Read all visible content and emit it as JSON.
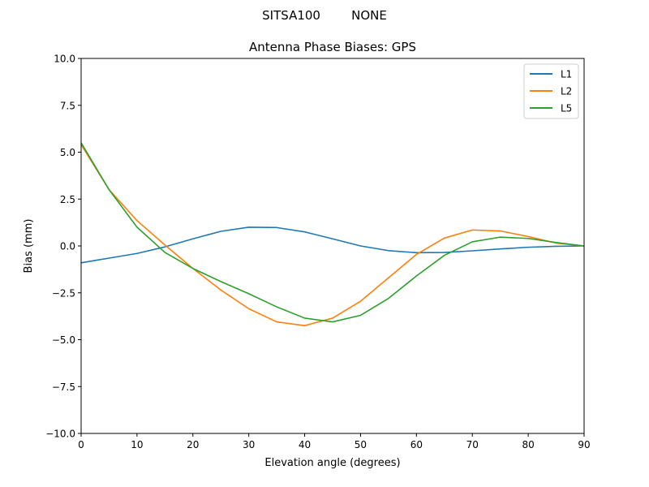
{
  "suptitle": "SITSA100        NONE",
  "chart_data": {
    "type": "line",
    "title": "Antenna Phase Biases: GPS",
    "xlabel": "Elevation angle (degrees)",
    "ylabel": "Bias (mm)",
    "xlim": [
      0,
      90
    ],
    "ylim": [
      -10,
      10
    ],
    "xticks": [
      0,
      10,
      20,
      30,
      40,
      50,
      60,
      70,
      80,
      90
    ],
    "xtick_labels": [
      "0",
      "10",
      "20",
      "30",
      "40",
      "50",
      "60",
      "70",
      "80",
      "90"
    ],
    "yticks": [
      -10,
      -7.5,
      -5,
      -2.5,
      0,
      2.5,
      5,
      7.5,
      10
    ],
    "ytick_labels": [
      "−10.0",
      "−7.5",
      "−5.0",
      "−2.5",
      "0.0",
      "2.5",
      "5.0",
      "7.5",
      "10.0"
    ],
    "grid": false,
    "legend_position": "top-right",
    "x": [
      0,
      5,
      10,
      15,
      20,
      25,
      30,
      35,
      40,
      45,
      50,
      55,
      60,
      65,
      70,
      75,
      80,
      85,
      90
    ],
    "series": [
      {
        "name": "L1",
        "color": "#1f77b4",
        "values": [
          -0.9,
          -0.65,
          -0.4,
          -0.05,
          0.38,
          0.78,
          1.0,
          0.98,
          0.75,
          0.38,
          0.0,
          -0.25,
          -0.36,
          -0.35,
          -0.26,
          -0.16,
          -0.07,
          -0.02,
          0.0
        ]
      },
      {
        "name": "L2",
        "color": "#ff7f0e",
        "values": [
          5.4,
          3.0,
          1.35,
          0.05,
          -1.2,
          -2.35,
          -3.35,
          -4.05,
          -4.25,
          -3.85,
          -2.95,
          -1.7,
          -0.45,
          0.42,
          0.85,
          0.8,
          0.5,
          0.15,
          0.0
        ]
      },
      {
        "name": "L5",
        "color": "#2ca02c",
        "values": [
          5.5,
          3.0,
          1.0,
          -0.35,
          -1.2,
          -1.9,
          -2.55,
          -3.25,
          -3.85,
          -4.05,
          -3.7,
          -2.8,
          -1.6,
          -0.5,
          0.22,
          0.47,
          0.4,
          0.18,
          0.0
        ]
      }
    ]
  }
}
